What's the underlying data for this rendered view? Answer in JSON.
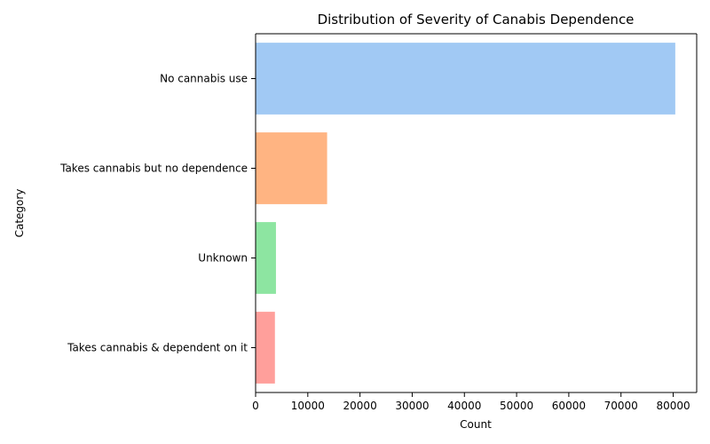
{
  "chart_data": {
    "type": "bar",
    "orientation": "horizontal",
    "title": "Distribution of Severity of Canabis Dependence",
    "xlabel": "Count",
    "ylabel": "Category",
    "categories": [
      "No cannabis use",
      "Takes cannabis but no dependence",
      "Unknown",
      "Takes cannabis & dependent on it"
    ],
    "values": [
      80400,
      13700,
      3900,
      3700
    ],
    "colors": [
      "#a1c9f4",
      "#ffb482",
      "#8de5a1",
      "#ff9f9b"
    ],
    "xlim": [
      0,
      84500
    ],
    "xticks": [
      0,
      10000,
      20000,
      30000,
      40000,
      50000,
      60000,
      70000,
      80000
    ],
    "grid": false,
    "legend": "none"
  }
}
